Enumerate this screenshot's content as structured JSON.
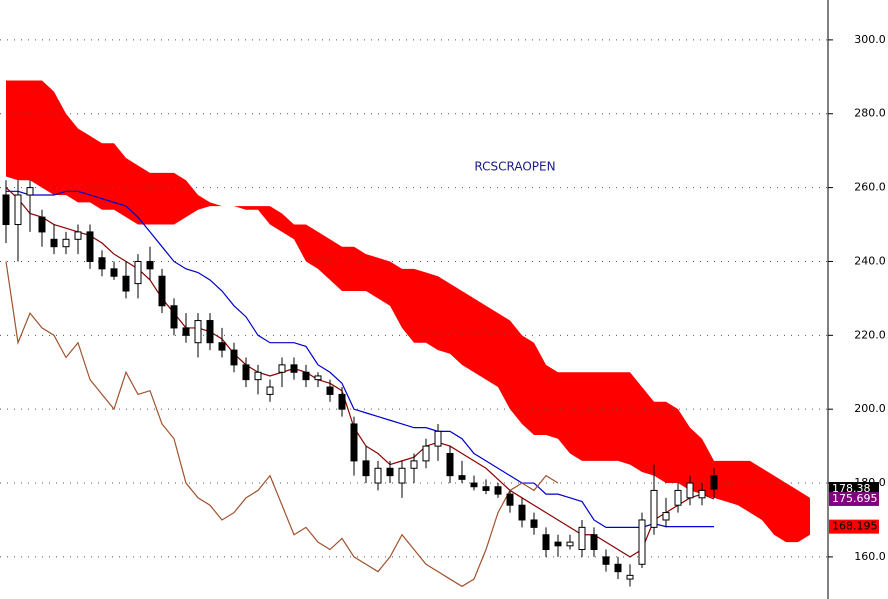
{
  "chart_data": {
    "type": "candlestick",
    "title": "RCSCRAOPEN",
    "ylim": [
      148.6,
      310.8
    ],
    "yticks": [
      {
        "value": 160,
        "label": "160.0"
      },
      {
        "value": 180,
        "label": "180.0"
      },
      {
        "value": 200,
        "label": "200.0"
      },
      {
        "value": 220,
        "label": "220.0"
      },
      {
        "value": 240,
        "label": "240.0"
      },
      {
        "value": 260,
        "label": "260.0"
      },
      {
        "value": 280,
        "label": "280.0"
      },
      {
        "value": 300,
        "label": "300.0"
      }
    ],
    "grid": true,
    "cloud": {
      "color": "#ff0000",
      "upper": [
        289,
        289,
        289,
        289,
        286,
        280,
        276,
        274,
        272,
        272,
        268,
        266,
        264,
        264,
        264,
        262,
        258,
        256,
        255,
        255,
        255,
        255,
        255,
        253,
        250,
        250,
        248,
        246,
        244,
        244,
        242,
        241,
        240,
        238,
        238,
        237,
        236,
        234,
        232,
        230,
        228,
        226,
        224,
        220,
        218,
        212,
        210,
        210,
        210,
        210,
        210,
        210,
        210,
        206,
        202,
        202,
        200,
        195,
        192,
        186,
        186,
        186,
        186,
        184,
        182,
        180,
        178,
        176
      ],
      "lower": [
        263,
        262,
        262,
        260,
        258,
        258,
        256,
        256,
        254,
        254,
        252,
        250,
        250,
        250,
        250,
        252,
        254,
        255,
        255,
        255,
        254,
        254,
        250,
        248,
        246,
        240,
        238,
        235,
        232,
        232,
        232,
        230,
        228,
        222,
        218,
        218,
        216,
        215,
        212,
        210,
        208,
        206,
        200,
        196,
        193,
        193,
        192,
        188,
        186,
        186,
        186,
        186,
        185,
        183,
        182,
        180,
        180,
        178,
        177,
        176,
        175,
        174,
        172,
        170,
        166,
        164,
        164,
        166
      ]
    },
    "candles": {
      "open": [
        258,
        250,
        258,
        252,
        246,
        244,
        246,
        248,
        241,
        238,
        236,
        234,
        240,
        236,
        228,
        222,
        218,
        224,
        218,
        216,
        212,
        208,
        204,
        210,
        212,
        210,
        208,
        206,
        204,
        196,
        186,
        180,
        184,
        180,
        184,
        186,
        190,
        188,
        182,
        180,
        179,
        179,
        177,
        174,
        170,
        166,
        164,
        163,
        162,
        166,
        160,
        158,
        154,
        158,
        168,
        170,
        174,
        176,
        176,
        182
      ],
      "high": [
        262,
        262,
        262,
        254,
        250,
        248,
        250,
        250,
        243,
        240,
        240,
        242,
        244,
        238,
        230,
        226,
        226,
        226,
        222,
        218,
        214,
        212,
        208,
        214,
        214,
        212,
        210,
        208,
        206,
        198,
        190,
        186,
        186,
        186,
        188,
        192,
        196,
        190,
        186,
        182,
        181,
        180,
        178,
        176,
        172,
        168,
        166,
        166,
        170,
        168,
        162,
        160,
        158,
        172,
        185,
        176,
        180,
        182,
        180,
        184
      ],
      "low": [
        245,
        240,
        248,
        244,
        242,
        242,
        242,
        238,
        236,
        235,
        230,
        230,
        235,
        226,
        220,
        218,
        214,
        216,
        214,
        210,
        206,
        204,
        202,
        206,
        208,
        206,
        206,
        202,
        198,
        182,
        180,
        178,
        180,
        176,
        180,
        184,
        186,
        180,
        180,
        178,
        177,
        176,
        172,
        168,
        166,
        160,
        160,
        162,
        160,
        160,
        156,
        154,
        152,
        157,
        166,
        168,
        172,
        174,
        174,
        176
      ],
      "close": [
        250,
        258,
        260,
        248,
        244,
        246,
        248,
        240,
        238,
        236,
        232,
        240,
        238,
        228,
        222,
        220,
        224,
        218,
        216,
        212,
        208,
        210,
        206,
        212,
        210,
        208,
        209,
        204,
        200,
        186,
        182,
        184,
        182,
        184,
        186,
        190,
        194,
        182,
        181,
        179,
        178,
        177,
        174,
        170,
        168,
        162,
        163,
        164,
        168,
        162,
        158,
        156,
        155,
        170,
        178,
        172,
        178,
        180,
        178,
        178.38
      ]
    },
    "lines": [
      {
        "color": "#0000cc",
        "values": [
          259,
          259,
          258,
          258,
          258,
          259,
          259,
          258,
          257,
          256,
          255,
          252,
          248,
          244,
          240,
          238,
          237,
          235,
          232,
          228,
          225,
          220,
          218,
          218,
          218,
          217,
          212,
          210,
          207,
          200,
          199,
          198,
          197,
          196,
          195,
          195,
          194,
          194,
          192,
          188,
          186,
          184,
          182,
          180,
          180,
          177,
          177,
          176,
          175,
          170,
          168,
          168,
          168,
          168,
          169,
          168.195,
          168.195,
          168.195,
          168.195,
          168.195
        ]
      },
      {
        "color": "#8b0000",
        "values": [
          260,
          257,
          253,
          252,
          250,
          249,
          248,
          247,
          245,
          242,
          240,
          238,
          235,
          230,
          226,
          222,
          222,
          221,
          219,
          215,
          212,
          210,
          209,
          210,
          211,
          210,
          208,
          207,
          205,
          195,
          190,
          188,
          185,
          186,
          187,
          190,
          191,
          190,
          188,
          186,
          184,
          181,
          178,
          176,
          174,
          172,
          170,
          168,
          166,
          166,
          164,
          162,
          160,
          162,
          170,
          172,
          174,
          176,
          177,
          175.695
        ]
      },
      {
        "color": "#a0522d",
        "values": [
          240,
          218,
          226,
          222,
          220,
          214,
          218,
          208,
          204,
          200,
          210,
          204,
          205,
          196,
          192,
          180,
          176,
          174,
          170,
          172,
          176,
          178,
          182,
          174,
          166,
          168,
          164,
          162,
          165,
          160,
          158,
          156,
          160,
          166,
          162,
          158,
          156,
          154,
          152,
          154,
          162,
          172,
          178,
          180,
          178,
          182,
          180,
          null,
          null,
          null,
          null,
          null,
          null,
          null,
          null,
          null,
          null,
          null,
          null,
          null
        ]
      }
    ],
    "price_labels": [
      {
        "value": 178.38,
        "label": "178.38",
        "color": "#000000",
        "text_color": "#ffffff"
      },
      {
        "value": 175.695,
        "label": "175.695",
        "color": "#800080",
        "text_color": "#ffffff"
      },
      {
        "value": 168.195,
        "label": "168.195",
        "color": "#ff0000",
        "text_color": "#000000"
      }
    ]
  }
}
